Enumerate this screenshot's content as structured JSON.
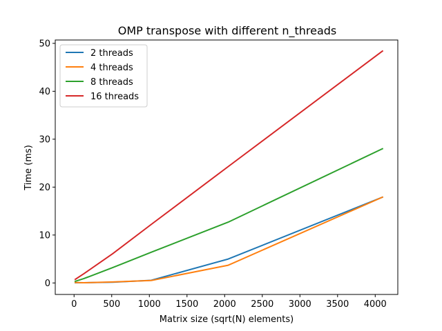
{
  "chart_data": {
    "type": "line",
    "title": "OMP transpose with different n_threads",
    "xlabel": "Matrix size (sqrt(N) elements)",
    "ylabel": "Time (ms)",
    "xlim": [
      -250,
      4300
    ],
    "ylim": [
      -2.4,
      50.7
    ],
    "xticks": [
      0,
      500,
      1000,
      1500,
      2000,
      2500,
      3000,
      3500,
      4000
    ],
    "yticks": [
      0,
      10,
      20,
      30,
      40,
      50
    ],
    "grid": false,
    "legend_position": "top-left",
    "x": [
      16,
      128,
      512,
      1024,
      2048,
      4096
    ],
    "series": [
      {
        "name": "2 threads",
        "color": "#1f77b4",
        "values": [
          0.05,
          0.05,
          0.15,
          0.55,
          5.0,
          17.9
        ]
      },
      {
        "name": "4 threads",
        "color": "#ff7f0e",
        "values": [
          0.1,
          0.05,
          0.2,
          0.5,
          3.7,
          17.9
        ]
      },
      {
        "name": "8 threads",
        "color": "#2ca02c",
        "values": [
          0.35,
          0.9,
          3.2,
          6.4,
          12.7,
          28.0
        ]
      },
      {
        "name": "16 threads",
        "color": "#d62728",
        "values": [
          0.75,
          1.9,
          6.1,
          12.2,
          24.3,
          48.4
        ]
      }
    ]
  }
}
